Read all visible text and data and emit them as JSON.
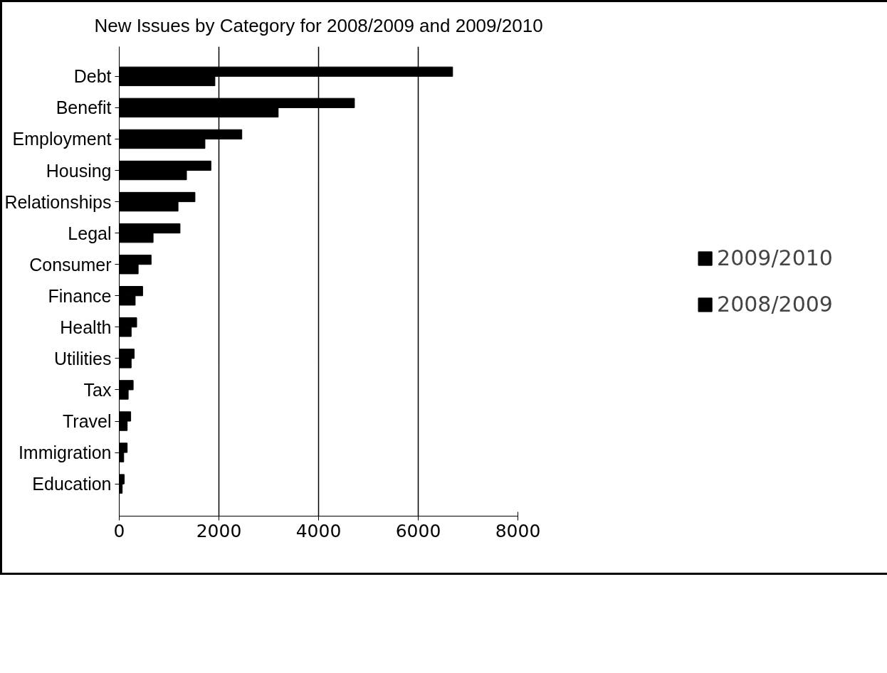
{
  "chart_data": {
    "type": "bar",
    "orientation": "horizontal",
    "title": "New Issues by Category for 2008/2009 and 2009/2010",
    "categories": [
      "Debt",
      "Benefit",
      "Employment",
      "Housing",
      "Relationships",
      "Legal",
      "Consumer",
      "Finance",
      "Health",
      "Utilities",
      "Tax",
      "Travel",
      "Immigration",
      "Education"
    ],
    "series": [
      {
        "name": "2009/2010",
        "color": "#000000",
        "values": [
          6690,
          4720,
          2460,
          1840,
          1520,
          1220,
          640,
          470,
          350,
          300,
          280,
          230,
          160,
          100
        ]
      },
      {
        "name": "2008/2009",
        "color": "#000000",
        "values": [
          1920,
          3190,
          1720,
          1350,
          1180,
          680,
          380,
          320,
          240,
          240,
          180,
          160,
          90,
          60
        ]
      }
    ],
    "xlim": [
      0,
      8000
    ],
    "xticks": [
      0,
      2000,
      4000,
      6000,
      8000
    ],
    "grid": "x",
    "legend": "right"
  }
}
